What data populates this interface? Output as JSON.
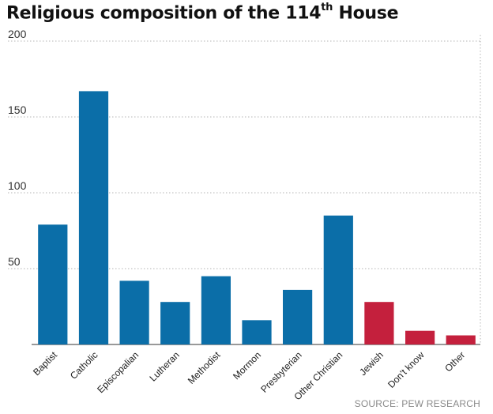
{
  "chart_data": {
    "type": "bar",
    "title_main": "Religious composition of the 114",
    "title_sup": "th",
    "title_end": " House",
    "categories": [
      "Baptist",
      "Catholic",
      "Episcopalian",
      "Lutheran",
      "Methodist",
      "Mormon",
      "Presbyterian",
      "Other Christian",
      "Jewish",
      "Don't know",
      "Other"
    ],
    "values": [
      79,
      167,
      42,
      28,
      45,
      16,
      36,
      85,
      28,
      9,
      6
    ],
    "ylim": [
      0,
      200
    ],
    "yticks": [
      50,
      100,
      150,
      200
    ],
    "grid": true,
    "colors": {
      "christian": "#0b6ea8",
      "other": "#c4203d"
    },
    "bar_groups": [
      "christian",
      "christian",
      "christian",
      "christian",
      "christian",
      "christian",
      "christian",
      "christian",
      "other",
      "other",
      "other"
    ],
    "source": "SOURCE: PEW RESEARCH"
  }
}
